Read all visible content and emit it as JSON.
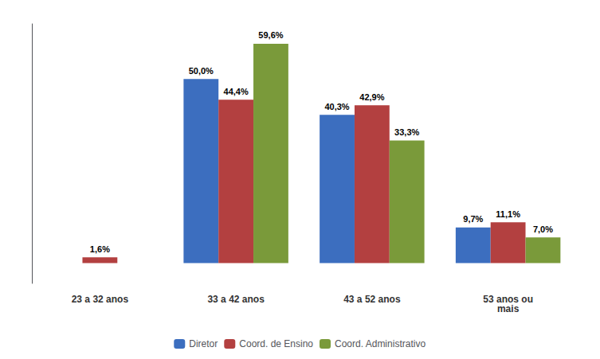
{
  "chart_data": {
    "type": "bar",
    "categories": [
      "23 a 32 anos",
      "33 a 42 anos",
      "43 a 52 anos",
      "53 anos ou\nmais"
    ],
    "series": [
      {
        "name": "Diretor",
        "color": "#3c6ebf",
        "values": [
          0.0,
          50.0,
          40.3,
          9.7
        ],
        "value_labels": [
          null,
          "50,0%",
          "40,3%",
          "9,7%"
        ]
      },
      {
        "name": "Coord. de Ensino",
        "color": "#b34040",
        "values": [
          1.6,
          44.4,
          42.9,
          11.1
        ],
        "value_labels": [
          "1,6%",
          "44,4%",
          "42,9%",
          "11,1%"
        ]
      },
      {
        "name": "Coord. Administrativo",
        "color": "#7a9a3a",
        "values": [
          0.0,
          59.6,
          33.3,
          7.0
        ],
        "value_labels": [
          null,
          "59,6%",
          "33,3%",
          "7,0%"
        ]
      }
    ],
    "ylim": [
      -5.5,
      65
    ],
    "data_labels": true,
    "tick_labels": "x",
    "legend": "bottom",
    "grid": false
  }
}
